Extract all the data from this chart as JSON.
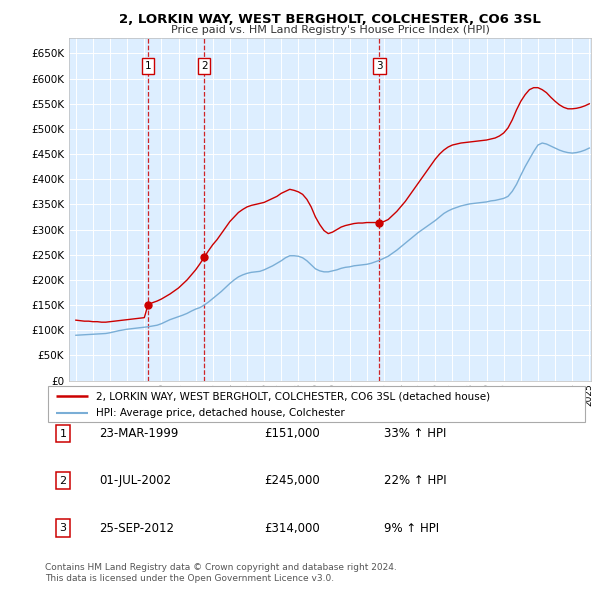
{
  "title": "2, LORKIN WAY, WEST BERGHOLT, COLCHESTER, CO6 3SL",
  "subtitle": "Price paid vs. HM Land Registry's House Price Index (HPI)",
  "legend_line1": "2, LORKIN WAY, WEST BERGHOLT, COLCHESTER, CO6 3SL (detached house)",
  "legend_line2": "HPI: Average price, detached house, Colchester",
  "transactions": [
    {
      "num": 1,
      "date": "23-MAR-1999",
      "price": "£151,000",
      "change": "33% ↑ HPI",
      "year": 1999.22
    },
    {
      "num": 2,
      "date": "01-JUL-2002",
      "price": "£245,000",
      "change": "22% ↑ HPI",
      "year": 2002.5
    },
    {
      "num": 3,
      "date": "25-SEP-2012",
      "price": "£314,000",
      "change": "9% ↑ HPI",
      "year": 2012.73
    }
  ],
  "transaction_values": [
    151000,
    245000,
    314000
  ],
  "footer1": "Contains HM Land Registry data © Crown copyright and database right 2024.",
  "footer2": "This data is licensed under the Open Government Licence v3.0.",
  "red_color": "#cc0000",
  "blue_color": "#7aaed6",
  "grid_color": "#ffffff",
  "plot_bg": "#ddeeff",
  "ylim_min": 0,
  "ylim_max": 680000,
  "hpi_years": [
    1995.0,
    1995.25,
    1995.5,
    1995.75,
    1996.0,
    1996.25,
    1996.5,
    1996.75,
    1997.0,
    1997.25,
    1997.5,
    1997.75,
    1998.0,
    1998.25,
    1998.5,
    1998.75,
    1999.0,
    1999.25,
    1999.5,
    1999.75,
    2000.0,
    2000.25,
    2000.5,
    2000.75,
    2001.0,
    2001.25,
    2001.5,
    2001.75,
    2002.0,
    2002.25,
    2002.5,
    2002.75,
    2003.0,
    2003.25,
    2003.5,
    2003.75,
    2004.0,
    2004.25,
    2004.5,
    2004.75,
    2005.0,
    2005.25,
    2005.5,
    2005.75,
    2006.0,
    2006.25,
    2006.5,
    2006.75,
    2007.0,
    2007.25,
    2007.5,
    2007.75,
    2008.0,
    2008.25,
    2008.5,
    2008.75,
    2009.0,
    2009.25,
    2009.5,
    2009.75,
    2010.0,
    2010.25,
    2010.5,
    2010.75,
    2011.0,
    2011.25,
    2011.5,
    2011.75,
    2012.0,
    2012.25,
    2012.5,
    2012.75,
    2013.0,
    2013.25,
    2013.5,
    2013.75,
    2014.0,
    2014.25,
    2014.5,
    2014.75,
    2015.0,
    2015.25,
    2015.5,
    2015.75,
    2016.0,
    2016.25,
    2016.5,
    2016.75,
    2017.0,
    2017.25,
    2017.5,
    2017.75,
    2018.0,
    2018.25,
    2018.5,
    2018.75,
    2019.0,
    2019.25,
    2019.5,
    2019.75,
    2020.0,
    2020.25,
    2020.5,
    2020.75,
    2021.0,
    2021.25,
    2021.5,
    2021.75,
    2022.0,
    2022.25,
    2022.5,
    2022.75,
    2023.0,
    2023.25,
    2023.5,
    2023.75,
    2024.0,
    2024.25,
    2024.5,
    2024.75,
    2025.0
  ],
  "hpi_values": [
    90000,
    90500,
    91000,
    91500,
    92000,
    92500,
    93000,
    93500,
    95000,
    97000,
    99000,
    100500,
    102000,
    103000,
    104000,
    105000,
    106000,
    107000,
    108500,
    110000,
    113000,
    117000,
    121000,
    124000,
    127000,
    130000,
    133500,
    138000,
    142000,
    145000,
    150000,
    156000,
    163000,
    170000,
    177000,
    185000,
    193000,
    200000,
    206000,
    210000,
    213000,
    215000,
    216000,
    217000,
    220000,
    224000,
    228000,
    233000,
    238000,
    244000,
    248000,
    248000,
    247000,
    244000,
    238000,
    230000,
    222000,
    218000,
    216000,
    216000,
    218000,
    220000,
    223000,
    225000,
    226000,
    228000,
    229000,
    230000,
    231000,
    233000,
    236000,
    239000,
    243000,
    247000,
    253000,
    259000,
    266000,
    273000,
    280000,
    287000,
    294000,
    300000,
    306000,
    312000,
    318000,
    325000,
    332000,
    337000,
    341000,
    344000,
    347000,
    349000,
    351000,
    352000,
    353000,
    354000,
    355000,
    357000,
    358000,
    360000,
    362000,
    366000,
    376000,
    390000,
    408000,
    425000,
    440000,
    455000,
    468000,
    472000,
    470000,
    466000,
    462000,
    458000,
    455000,
    453000,
    452000,
    453000,
    455000,
    458000,
    462000
  ],
  "red_years": [
    1995.0,
    1995.25,
    1995.5,
    1995.75,
    1996.0,
    1996.25,
    1996.5,
    1996.75,
    1997.0,
    1997.25,
    1997.5,
    1997.75,
    1998.0,
    1998.25,
    1998.5,
    1998.75,
    1999.0,
    1999.22,
    1999.5,
    1999.75,
    2000.0,
    2000.25,
    2000.5,
    2000.75,
    2001.0,
    2001.25,
    2001.5,
    2001.75,
    2002.0,
    2002.25,
    2002.5,
    2002.75,
    2003.0,
    2003.25,
    2003.5,
    2003.75,
    2004.0,
    2004.25,
    2004.5,
    2004.75,
    2005.0,
    2005.25,
    2005.5,
    2005.75,
    2006.0,
    2006.25,
    2006.5,
    2006.75,
    2007.0,
    2007.25,
    2007.5,
    2007.75,
    2008.0,
    2008.25,
    2008.5,
    2008.75,
    2009.0,
    2009.25,
    2009.5,
    2009.75,
    2010.0,
    2010.25,
    2010.5,
    2010.75,
    2011.0,
    2011.25,
    2011.5,
    2011.75,
    2012.0,
    2012.25,
    2012.5,
    2012.73,
    2013.0,
    2013.25,
    2013.5,
    2013.75,
    2014.0,
    2014.25,
    2014.5,
    2014.75,
    2015.0,
    2015.25,
    2015.5,
    2015.75,
    2016.0,
    2016.25,
    2016.5,
    2016.75,
    2017.0,
    2017.25,
    2017.5,
    2017.75,
    2018.0,
    2018.25,
    2018.5,
    2018.75,
    2019.0,
    2019.25,
    2019.5,
    2019.75,
    2020.0,
    2020.25,
    2020.5,
    2020.75,
    2021.0,
    2021.25,
    2021.5,
    2021.75,
    2022.0,
    2022.25,
    2022.5,
    2022.75,
    2023.0,
    2023.25,
    2023.5,
    2023.75,
    2024.0,
    2024.25,
    2024.5,
    2024.75,
    2025.0
  ],
  "red_values": [
    120000,
    119000,
    118000,
    118000,
    117000,
    117000,
    116000,
    116000,
    117000,
    118000,
    119000,
    120000,
    121000,
    122000,
    123000,
    124000,
    125000,
    151000,
    155000,
    158000,
    162000,
    167000,
    172000,
    178000,
    184000,
    192000,
    200000,
    210000,
    220000,
    232000,
    245000,
    258000,
    270000,
    280000,
    292000,
    304000,
    316000,
    325000,
    334000,
    340000,
    345000,
    348000,
    350000,
    352000,
    354000,
    358000,
    362000,
    366000,
    372000,
    376000,
    380000,
    378000,
    375000,
    370000,
    360000,
    345000,
    325000,
    310000,
    298000,
    292000,
    295000,
    300000,
    305000,
    308000,
    310000,
    312000,
    313000,
    313000,
    314000,
    314000,
    314000,
    314000,
    316000,
    320000,
    328000,
    336000,
    346000,
    356000,
    368000,
    380000,
    392000,
    404000,
    416000,
    428000,
    440000,
    450000,
    458000,
    464000,
    468000,
    470000,
    472000,
    473000,
    474000,
    475000,
    476000,
    477000,
    478000,
    480000,
    482000,
    486000,
    492000,
    502000,
    518000,
    538000,
    555000,
    568000,
    578000,
    582000,
    582000,
    578000,
    572000,
    563000,
    555000,
    548000,
    543000,
    540000,
    540000,
    541000,
    543000,
    546000,
    550000
  ]
}
